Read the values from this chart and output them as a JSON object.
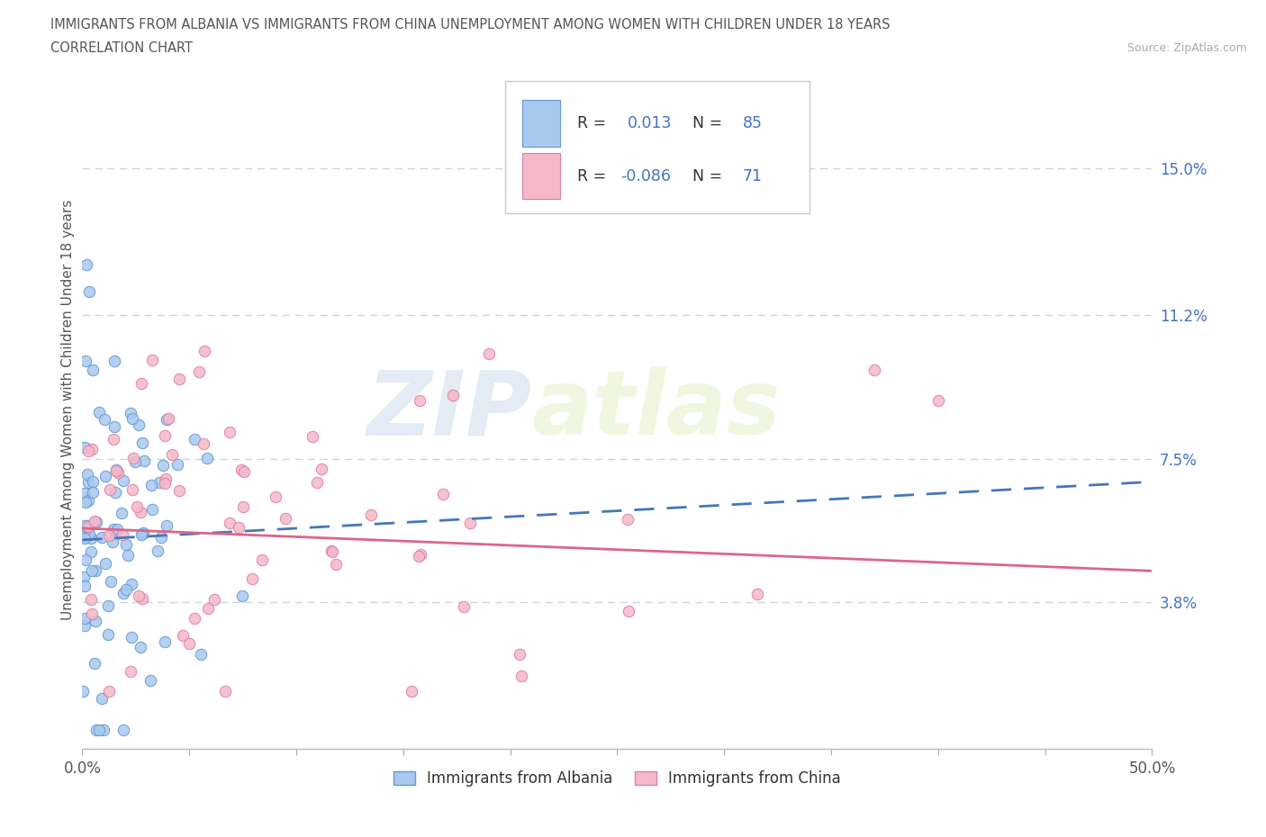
{
  "title_line1": "IMMIGRANTS FROM ALBANIA VS IMMIGRANTS FROM CHINA UNEMPLOYMENT AMONG WOMEN WITH CHILDREN UNDER 18 YEARS",
  "title_line2": "CORRELATION CHART",
  "source_text": "Source: ZipAtlas.com",
  "ylabel": "Unemployment Among Women with Children Under 18 years",
  "xlim": [
    0,
    0.5
  ],
  "ylim": [
    0,
    0.175
  ],
  "xtick_vals": [
    0.0,
    0.05,
    0.1,
    0.15,
    0.2,
    0.25,
    0.3,
    0.35,
    0.4,
    0.45,
    0.5
  ],
  "xtick_labels_show": [
    "0.0%",
    "",
    "",
    "",
    "",
    "",
    "",
    "",
    "",
    "",
    "50.0%"
  ],
  "ytick_vals": [
    0.038,
    0.075,
    0.112,
    0.15
  ],
  "ytick_labels": [
    "3.8%",
    "7.5%",
    "11.2%",
    "15.0%"
  ],
  "albania_color": "#a8c8f0",
  "albania_edge_color": "#6699cc",
  "china_color": "#f4b8c8",
  "china_edge_color": "#e080a0",
  "albania_line_color": "#4477bb",
  "china_line_color": "#dd6688",
  "R_albania": 0.013,
  "N_albania": 85,
  "R_china": -0.086,
  "N_china": 71,
  "watermark_zip": "ZIP",
  "watermark_atlas": "atlas",
  "legend_label_albania": "Immigrants from Albania",
  "legend_label_china": "Immigrants from China",
  "background_color": "#ffffff",
  "grid_color": "#c8d4e8",
  "blue_text_color": "#4472c4",
  "alb_trend_y0": 0.054,
  "alb_trend_y1": 0.069,
  "chn_trend_y0": 0.057,
  "chn_trend_y1": 0.046
}
